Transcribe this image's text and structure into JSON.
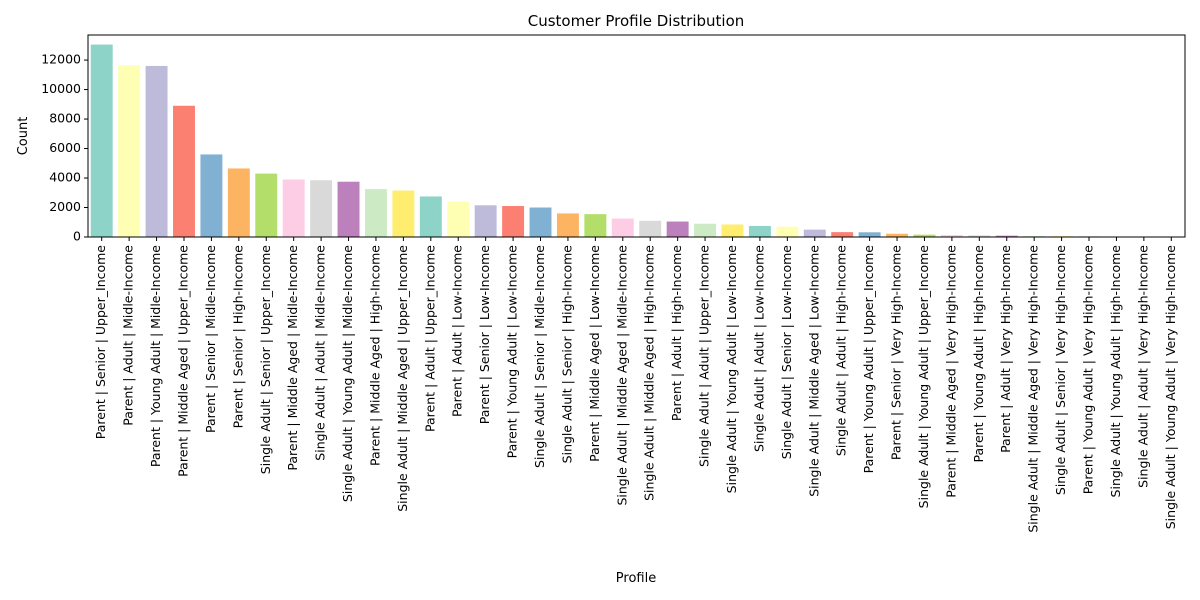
{
  "chart_data": {
    "type": "bar",
    "title": "Customer Profile Distribution",
    "xlabel": "Profile",
    "ylabel": "Count",
    "ylim": [
      0,
      13700
    ],
    "yticks": [
      0,
      2000,
      4000,
      6000,
      8000,
      10000,
      12000
    ],
    "grid": false,
    "categories": [
      "Parent | Senior | Upper_Income",
      "Parent | Adult | Midle-Income",
      "Parent | Young Adult | Midle-Income",
      "Parent | Middle Aged | Upper_Income",
      "Parent | Senior | Midle-Income",
      "Parent | Senior | High-Income",
      "Single Adult | Senior | Upper_Income",
      "Parent | Middle Aged | Midle-Income",
      "Single Adult | Adult | Midle-Income",
      "Single Adult | Young Adult | Midle-Income",
      "Parent | Middle Aged | High-Income",
      "Single Adult | Middle Aged | Upper_Income",
      "Parent | Adult | Upper_Income",
      "Parent | Adult | Low-Income",
      "Parent | Senior | Low-Income",
      "Parent | Young Adult | Low-Income",
      "Single Adult | Senior | Midle-Income",
      "Single Adult | Senior | High-Income",
      "Parent | Middle Aged | Low-Income",
      "Single Adult | Middle Aged | Midle-Income",
      "Single Adult | Middle Aged | High-Income",
      "Parent | Adult | High-Income",
      "Single Adult | Adult | Upper_Income",
      "Single Adult | Young Adult | Low-Income",
      "Single Adult | Adult | Low-Income",
      "Single Adult | Senior | Low-Income",
      "Single Adult | Middle Aged | Low-Income",
      "Single Adult | Adult | High-Income",
      "Parent | Young Adult | Upper_Income",
      "Parent | Senior | Very High-Income",
      "Single Adult | Young Adult | Upper_Income",
      "Parent | Middle Aged | Very High-Income",
      "Parent | Young Adult | High-Income",
      "Parent | Adult | Very High-Income",
      "Single Adult | Middle Aged | Very High-Income",
      "Single Adult | Senior | Very High-Income",
      "Parent | Young Adult | Very High-Income",
      "Single Adult | Young Adult | High-Income",
      "Single Adult | Adult | Very High-Income",
      "Single Adult | Young Adult | Very High-Income"
    ],
    "values": [
      13050,
      11650,
      11600,
      8900,
      5600,
      4650,
      4300,
      3900,
      3850,
      3750,
      3250,
      3150,
      2750,
      2400,
      2150,
      2100,
      2000,
      1600,
      1550,
      1250,
      1100,
      1050,
      900,
      850,
      750,
      700,
      500,
      330,
      320,
      220,
      160,
      130,
      110,
      90,
      60,
      50,
      40,
      30,
      25,
      15
    ],
    "colors": [
      "#8dd3c7",
      "#ffffb3",
      "#bebada",
      "#fb8072",
      "#80b1d3",
      "#fdb462",
      "#b3de69",
      "#fccde5",
      "#d9d9d9",
      "#bc80bd",
      "#ccebc5",
      "#ffed6f"
    ]
  }
}
